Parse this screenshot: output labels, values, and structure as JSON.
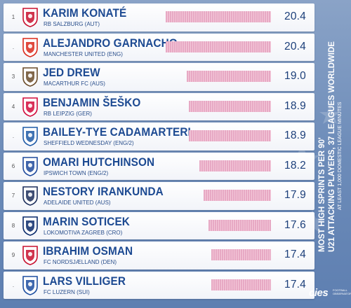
{
  "chart_data": {
    "type": "bar",
    "title": "MOST HIGH SPRINTS PER 90'",
    "subtitle": "U21 ATTACKING PLAYERS, 37 LEAGUES WORLDWIDE",
    "note": "AT LEAST 1,000 DOMESTIC LEAGUE MINUTES",
    "categories": [
      "KARIM KONATÉ",
      "ALEJANDRO GARNACHO",
      "JED DREW",
      "BENJAMIN ŠEŠKO",
      "BAILEY-TYE CADAMARTERI",
      "OMARI HUTCHINSON",
      "NESTORY IRANKUNDA",
      "MARIN SOTICEK",
      "IBRAHIM OSMAN",
      "LARS VILLIGER"
    ],
    "values": [
      20.4,
      20.4,
      19.0,
      18.9,
      18.9,
      18.2,
      17.9,
      17.6,
      17.4,
      17.4
    ],
    "value_labels": [
      "20.4",
      "20.4",
      "19.0",
      "18.9",
      "18.9",
      "18.2",
      "17.9",
      "17.6",
      "17.4",
      "17.4"
    ],
    "clubs": [
      "RB SALZBURG (AUT)",
      "MANCHESTER UNITED (ENG)",
      "MACARTHUR FC (AUS)",
      "RB LEIPZIG (GER)",
      "SHEFFIELD WEDNESDAY (ENG/2)",
      "IPSWICH TOWN (ENG/2)",
      "ADELAIDE UNITED (AUS)",
      "LOKOMOTIVA ZAGREB (CRO)",
      "FC NORDSJÆLLAND (DEN)",
      "FC LUZERN (SUI)"
    ],
    "ranks": [
      "1",
      ".",
      "3",
      "4",
      ".",
      "6",
      "7",
      "8",
      "9",
      "."
    ],
    "logo_icons": [
      "rb-salzburg-crest-icon",
      "manchester-united-crest-icon",
      "macarthur-fc-crest-icon",
      "rb-leipzig-crest-icon",
      "sheffield-wednesday-crest-icon",
      "ipswich-town-crest-icon",
      "adelaide-united-crest-icon",
      "lokomotiva-zagreb-crest-icon",
      "fc-nordsjaelland-crest-icon",
      "fc-luzern-crest-icon"
    ],
    "grid": false,
    "legend": "none"
  },
  "brand": {
    "name": "cies",
    "sub": "FOOTBALL OBSERVATORY"
  },
  "colors": {
    "bar": "#e7a9c4",
    "name": "#1d4a92",
    "background": "#6d8cb9"
  }
}
